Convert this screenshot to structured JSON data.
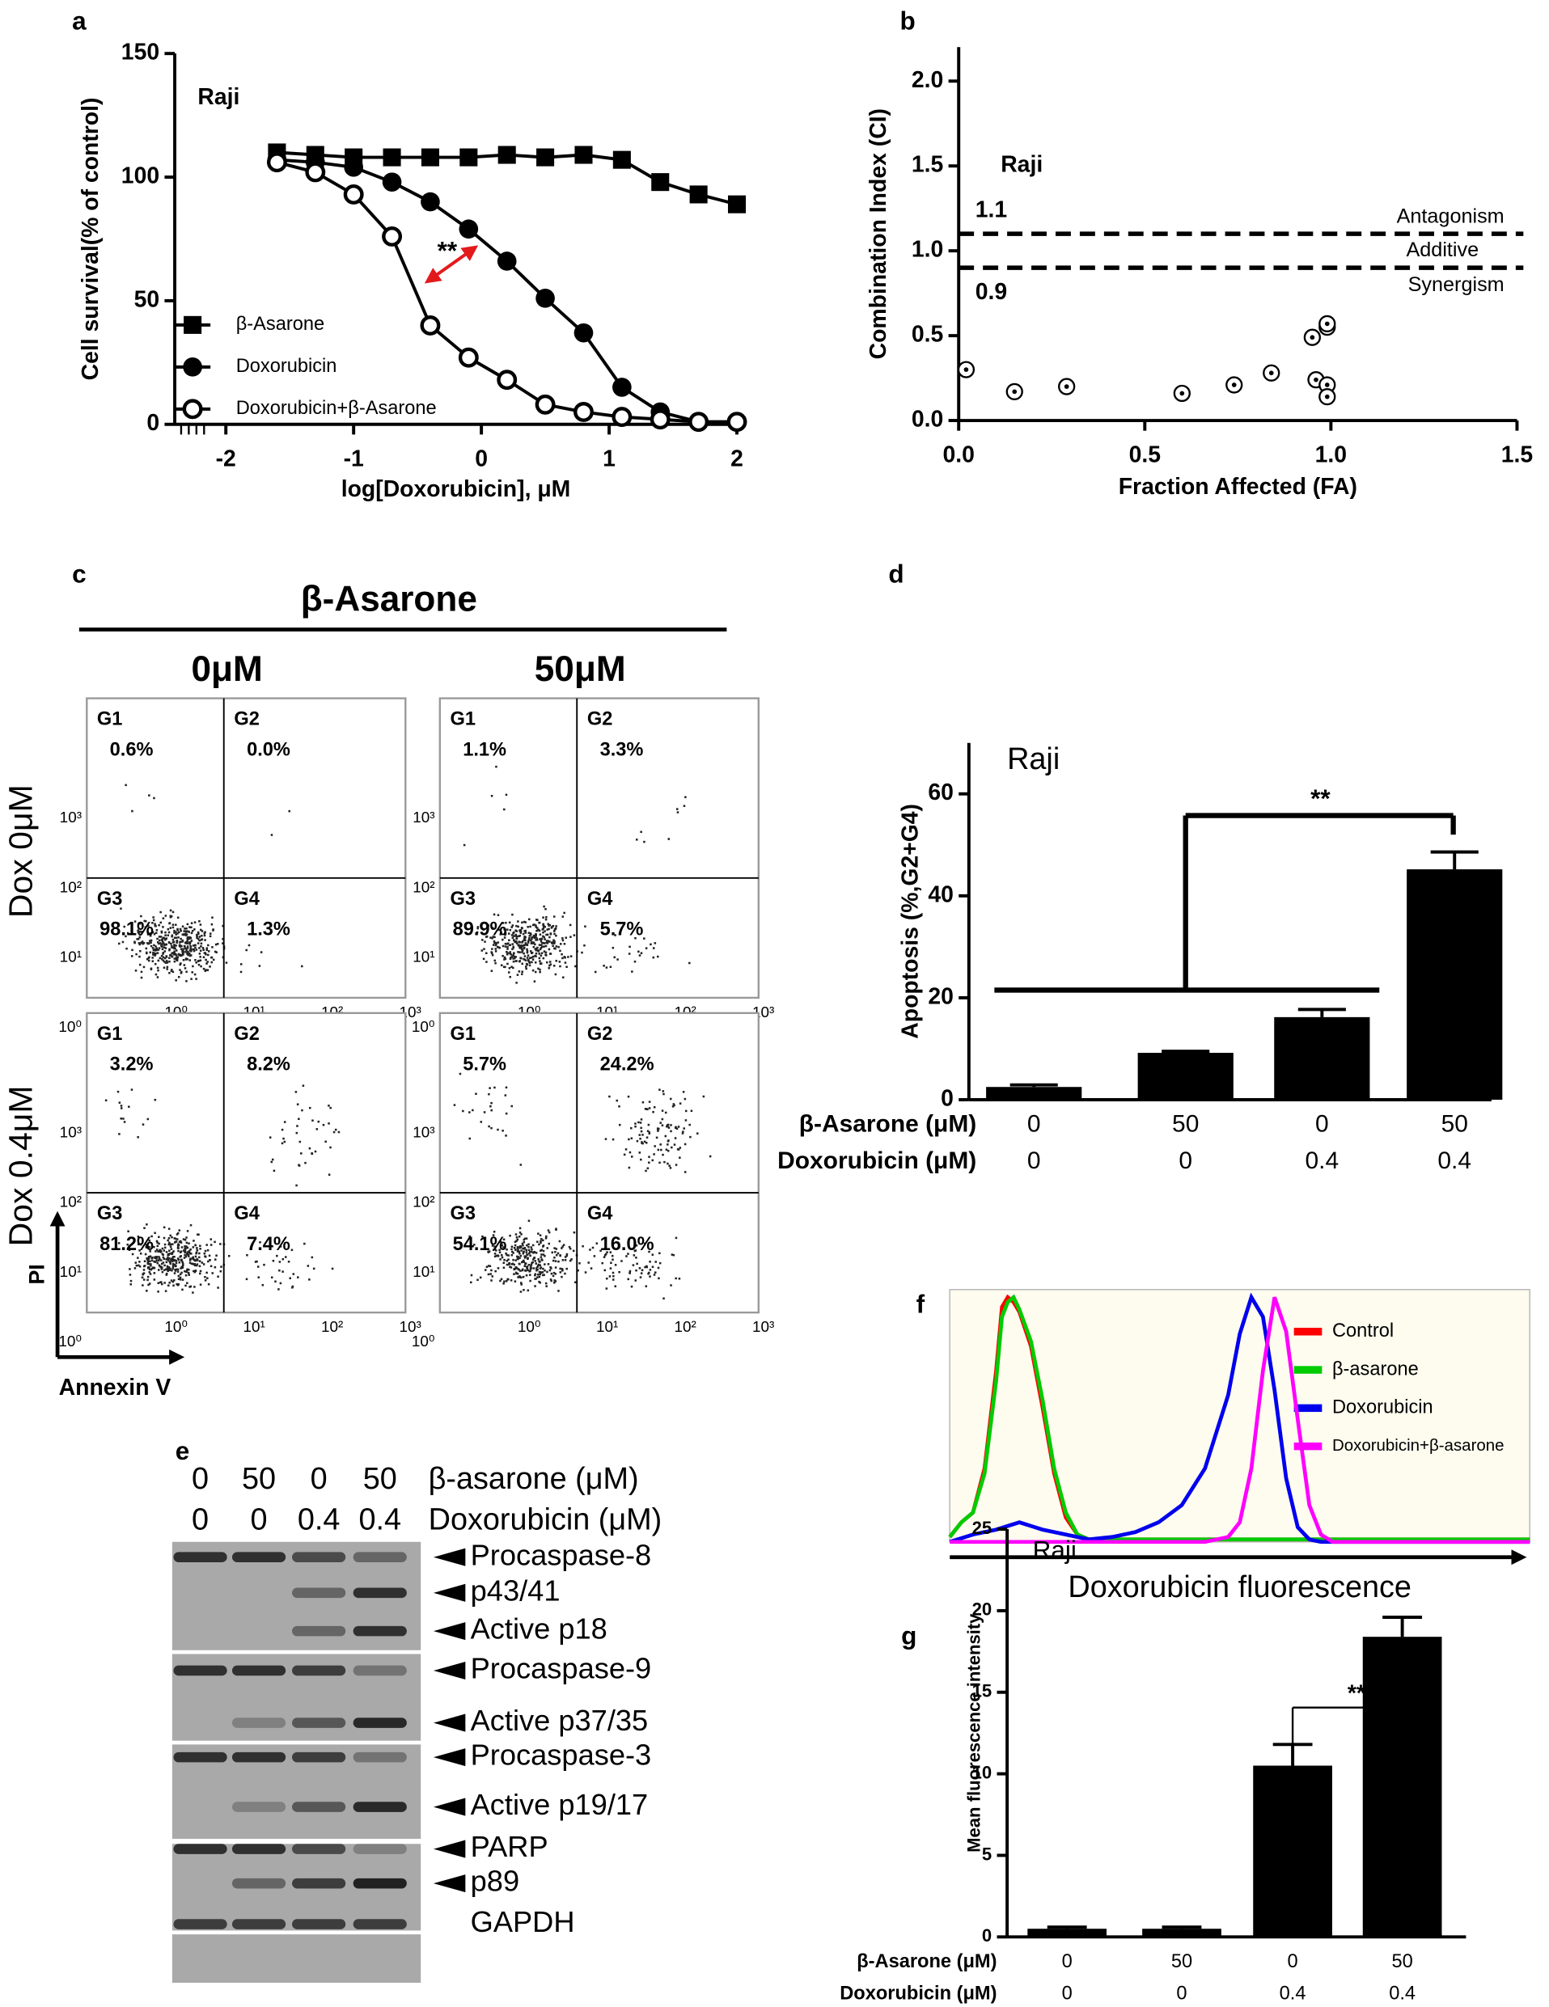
{
  "panel_labels": [
    "a",
    "b",
    "c",
    "d",
    "e",
    "f",
    "g"
  ],
  "chart_data": [
    {
      "type": "line",
      "annotations": [
        "Raji",
        "**"
      ],
      "xlabel": "log[Doxorubicin], μM",
      "ylabel": "Cell survival(% of control)",
      "xlim": [
        -2.4,
        2
      ],
      "ylim": [
        0,
        150
      ],
      "xticks": [
        -2,
        -1,
        0,
        1,
        2
      ],
      "yticks": [
        0,
        50,
        100,
        150
      ],
      "x": [
        -1.6,
        -1.3,
        -1.0,
        -0.7,
        -0.4,
        -0.1,
        0.2,
        0.5,
        0.8,
        1.1,
        1.4,
        1.7,
        2.0
      ],
      "series": [
        {
          "name": "β-Asarone",
          "color": "#000000",
          "marker": "square",
          "values": [
            110,
            109,
            108,
            108,
            108,
            108,
            109,
            108,
            109,
            107,
            98,
            93,
            89
          ]
        },
        {
          "name": "Doxorubicin",
          "color": "#000000",
          "marker": "circle",
          "values": [
            107,
            106,
            104,
            98,
            90,
            79,
            66,
            51,
            37,
            15,
            5,
            1,
            1
          ]
        },
        {
          "name": "Doxorubicin+β-Asarone",
          "color": "#000000",
          "marker": "open-circle",
          "values": [
            106,
            102,
            93,
            76,
            40,
            27,
            18,
            8,
            5,
            3,
            2,
            1,
            1
          ]
        }
      ]
    },
    {
      "type": "scatter",
      "annotations": [
        "Raji"
      ],
      "xlabel": "Fraction Affected (FA)",
      "ylabel": "Combination Index (CI)",
      "xlim": [
        0,
        1.5
      ],
      "ylim": [
        0,
        2.2
      ],
      "xticks": [
        {
          "value": 0,
          "label": "0.0"
        },
        0.5,
        {
          "value": 1,
          "label": "1.0"
        },
        1.5
      ],
      "yticks": [
        {
          "value": 0,
          "label": "0.0"
        },
        0.5,
        {
          "value": 1,
          "label": "1.0"
        },
        1.5,
        {
          "value": 2,
          "label": "2.0"
        }
      ],
      "x": [
        0.02,
        0.15,
        0.29,
        0.6,
        0.74,
        0.84,
        0.95,
        0.96,
        0.99,
        0.99,
        0.99,
        0.99
      ],
      "values": [
        0.3,
        0.17,
        0.2,
        0.16,
        0.21,
        0.28,
        0.49,
        0.24,
        0.21,
        0.14,
        0.55,
        0.57
      ],
      "thresholds": [
        {
          "value": 1.1,
          "label": "1.1"
        },
        {
          "value": 0.9,
          "label": "0.9"
        }
      ],
      "regions": [
        "Antagonism",
        "Additive",
        "Synergism"
      ]
    },
    {
      "type": "bar",
      "annotations": [
        "Raji",
        "**"
      ],
      "ylabel": "Apoptosis (%,G2+G4)",
      "ylim": [
        0,
        70
      ],
      "yticks": [
        0,
        20,
        40,
        60
      ],
      "values": [
        2.5,
        9.2,
        16.2,
        45.2
      ],
      "errors": [
        0.4,
        0.3,
        1.5,
        3.4
      ],
      "color": "#000000",
      "condition_rows": [
        {
          "label": "β-Asarone (μM)",
          "values": [
            0,
            50,
            0,
            50
          ]
        },
        {
          "label": "Doxorubicin (μM)",
          "values": [
            0,
            0,
            0.4,
            0.4
          ]
        }
      ]
    },
    {
      "type": "line",
      "xlabel": "Doxorubicin fluorescence",
      "xlim": [
        0,
        100
      ],
      "ylim": [
        0,
        100
      ],
      "series": [
        {
          "name": "Control",
          "color": "#ff0000",
          "x": [
            0,
            2,
            4,
            6,
            8,
            9,
            10,
            11,
            12,
            14,
            16,
            18,
            20,
            22,
            24,
            100
          ],
          "values": [
            2,
            8,
            12,
            30,
            70,
            96,
            100,
            98,
            94,
            80,
            55,
            28,
            10,
            3,
            1,
            1
          ]
        },
        {
          "name": "β-asarone",
          "color": "#00cc00",
          "x": [
            0,
            2,
            4,
            6,
            8,
            9,
            10,
            11,
            12,
            14,
            16,
            18,
            20,
            22,
            24,
            100
          ],
          "values": [
            2,
            8,
            12,
            28,
            66,
            92,
            98,
            100,
            95,
            82,
            58,
            30,
            12,
            3,
            1,
            1
          ]
        },
        {
          "name": "Doxorubicin",
          "color": "#0000ee",
          "x": [
            0,
            4,
            8,
            12,
            16,
            20,
            24,
            28,
            32,
            36,
            40,
            44,
            48,
            50,
            52,
            54,
            56,
            58,
            60,
            62,
            64,
            100
          ],
          "values": [
            0,
            3,
            5,
            8,
            5,
            3,
            1,
            2,
            4,
            8,
            15,
            30,
            60,
            85,
            100,
            92,
            62,
            26,
            6,
            1,
            0,
            0
          ]
        },
        {
          "name": "Doxorubicin+β-asarone",
          "color": "#ff00ff",
          "x": [
            0,
            44,
            48,
            50,
            52,
            54,
            56,
            58,
            60,
            62,
            64,
            66,
            100
          ],
          "values": [
            0,
            0,
            2,
            8,
            30,
            70,
            100,
            86,
            50,
            15,
            3,
            0,
            0
          ]
        }
      ]
    },
    {
      "type": "bar",
      "annotations": [
        "Raji",
        "**"
      ],
      "ylabel": "Mean fluorescence intensity",
      "ylim": [
        0,
        25
      ],
      "yticks": [
        0,
        5,
        10,
        15,
        20,
        25
      ],
      "values": [
        0.5,
        0.5,
        10.5,
        18.4
      ],
      "errors": [
        0.1,
        0.1,
        1.3,
        1.2
      ],
      "color": "#000000",
      "condition_rows": [
        {
          "label": "β-Asarone (μM)",
          "values": [
            0,
            50,
            0,
            50
          ]
        },
        {
          "label": "Doxorubicin (μM)",
          "values": [
            0,
            0,
            0.4,
            0.4
          ]
        }
      ]
    }
  ],
  "flow": {
    "title": "β-Asarone",
    "columns": [
      "0μM",
      "50μM"
    ],
    "rows": [
      "Dox 0μM",
      "Dox 0.4μM"
    ],
    "axis_ticks": [
      "10⁰",
      "10¹",
      "10²",
      "10³"
    ],
    "ylabel": "PI",
    "xlabel": "Annexin V",
    "plots": [
      [
        {
          "gates": [
            {
              "name": "G1",
              "percent": "0.6%"
            },
            {
              "name": "G2",
              "percent": "0.0%"
            },
            {
              "name": "G3",
              "percent": "98.1%"
            },
            {
              "name": "G4",
              "percent": "1.3%"
            }
          ]
        },
        {
          "gates": [
            {
              "name": "G1",
              "percent": "1.1%"
            },
            {
              "name": "G2",
              "percent": "3.3%"
            },
            {
              "name": "G3",
              "percent": "89.9%"
            },
            {
              "name": "G4",
              "percent": "5.7%"
            }
          ]
        }
      ],
      [
        {
          "gates": [
            {
              "name": "G1",
              "percent": "3.2%"
            },
            {
              "name": "G2",
              "percent": "8.2%"
            },
            {
              "name": "G3",
              "percent": "81.2%"
            },
            {
              "name": "G4",
              "percent": "7.4%"
            }
          ]
        },
        {
          "gates": [
            {
              "name": "G1",
              "percent": "5.7%"
            },
            {
              "name": "G2",
              "percent": "24.2%"
            },
            {
              "name": "G3",
              "percent": "54.1%"
            },
            {
              "name": "G4",
              "percent": "16.0%"
            }
          ]
        }
      ]
    ]
  },
  "blot": {
    "conditions": [
      {
        "label": "β-asarone (μM)",
        "values": [
          0,
          50,
          0,
          50
        ]
      },
      {
        "label": "Doxorubicin (μM)",
        "values": [
          0,
          0,
          0.4,
          0.4
        ]
      }
    ],
    "bands": [
      "Procaspase-8",
      "p43/41",
      "Active p18",
      "Procaspase-9",
      "Active p37/35",
      "Procaspase-3",
      "Active p19/17",
      "PARP",
      "p89",
      "GAPDH"
    ]
  }
}
